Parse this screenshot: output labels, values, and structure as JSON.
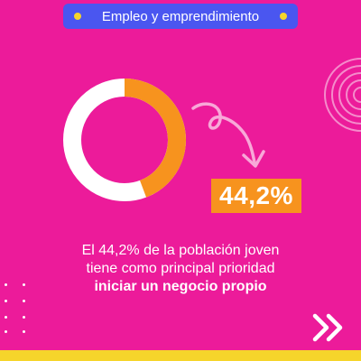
{
  "header": {
    "tag_label": "Empleo y emprendimiento"
  },
  "stat": {
    "percent_label": "44,2%",
    "fraction": 0.442
  },
  "message": {
    "line1": "El 44,2% de la población joven",
    "line2": "tiene como principal prioridad",
    "line3_bold": "iniciar un negocio propio"
  },
  "icons": {
    "decor_rings": "concentric-rings-icon",
    "arrow": "curly-arrow-icon",
    "next": "double-chevron-right-icon"
  },
  "colors": {
    "background": "#EC1B9A",
    "tag_bg": "#4A56F0",
    "accent_yellow": "#F6D52B",
    "accent_orange": "#F7931E",
    "ring_base": "#ffffff",
    "arrow_pink": "#F8A8D8"
  }
}
